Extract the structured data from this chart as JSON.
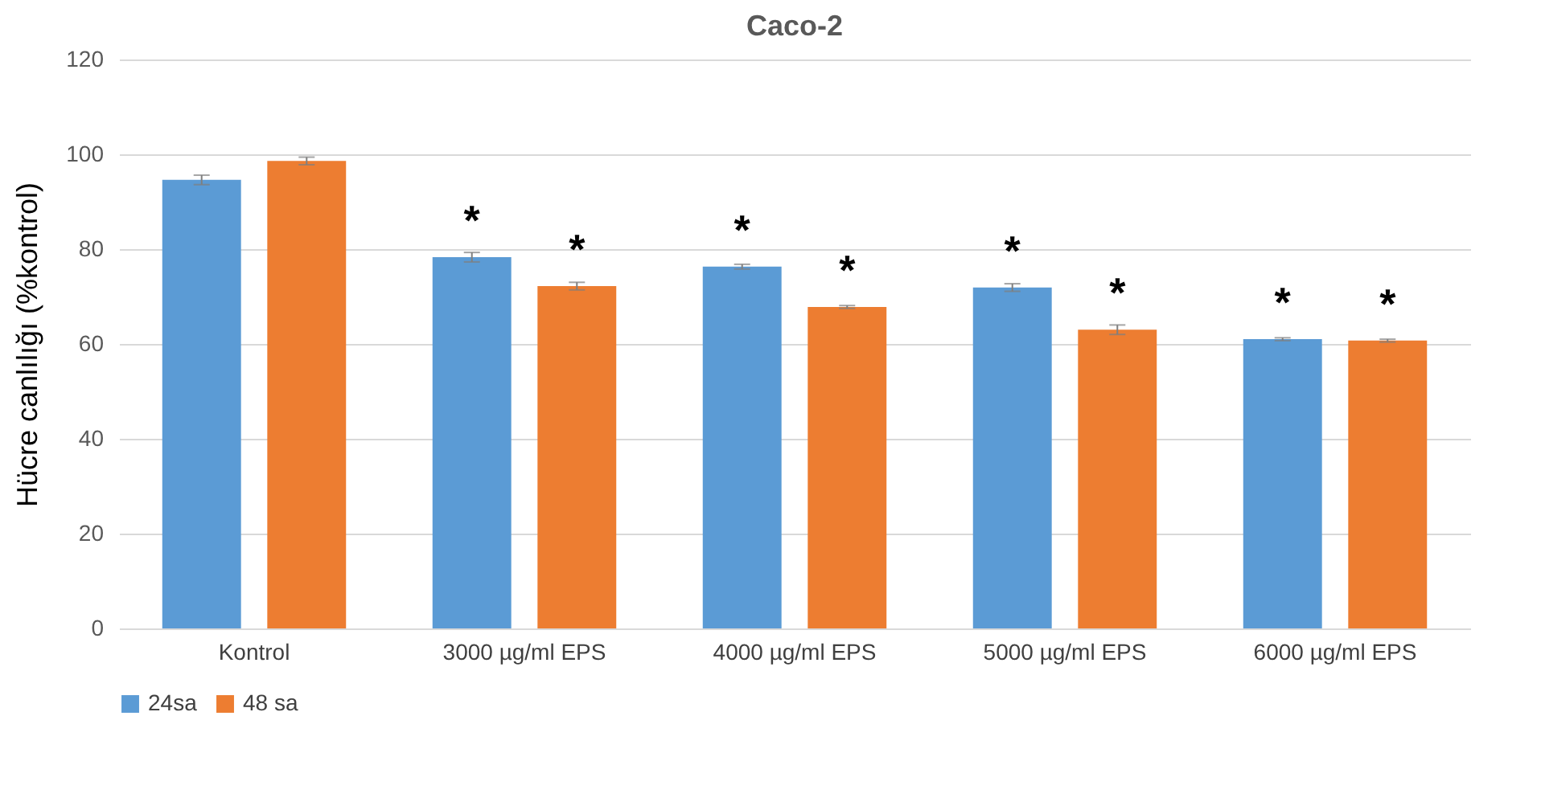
{
  "chart_data": {
    "type": "bar",
    "title": "Caco-2",
    "ylabel": "Hücre canlılığı (%kontrol)",
    "categories": [
      "Kontrol",
      "3000 µg/ml EPS",
      "4000 µg/ml EPS",
      "5000 µg/ml EPS",
      "6000 µg/ml EPS"
    ],
    "series": [
      {
        "name": "24sa",
        "color": "#5b9bd5",
        "values": [
          94.6,
          78.3,
          76.3,
          71.9,
          61
        ],
        "errors": [
          1,
          1,
          0.5,
          0.8,
          0.3
        ],
        "value_labels": [
          null,
          "*",
          "*",
          "*",
          "*"
        ]
      },
      {
        "name": "48 sa",
        "color": "#ed7d31",
        "values": [
          98.6,
          72.2,
          67.8,
          63,
          60.7
        ],
        "errors": [
          0.8,
          0.8,
          0.3,
          1,
          0.3
        ],
        "value_labels": [
          null,
          "*",
          "*",
          "*",
          "*"
        ]
      }
    ],
    "ylim": [
      0,
      120
    ],
    "yticks": [
      0,
      20,
      40,
      60,
      80,
      100,
      120
    ],
    "grid": "y",
    "legend": "bottom"
  }
}
